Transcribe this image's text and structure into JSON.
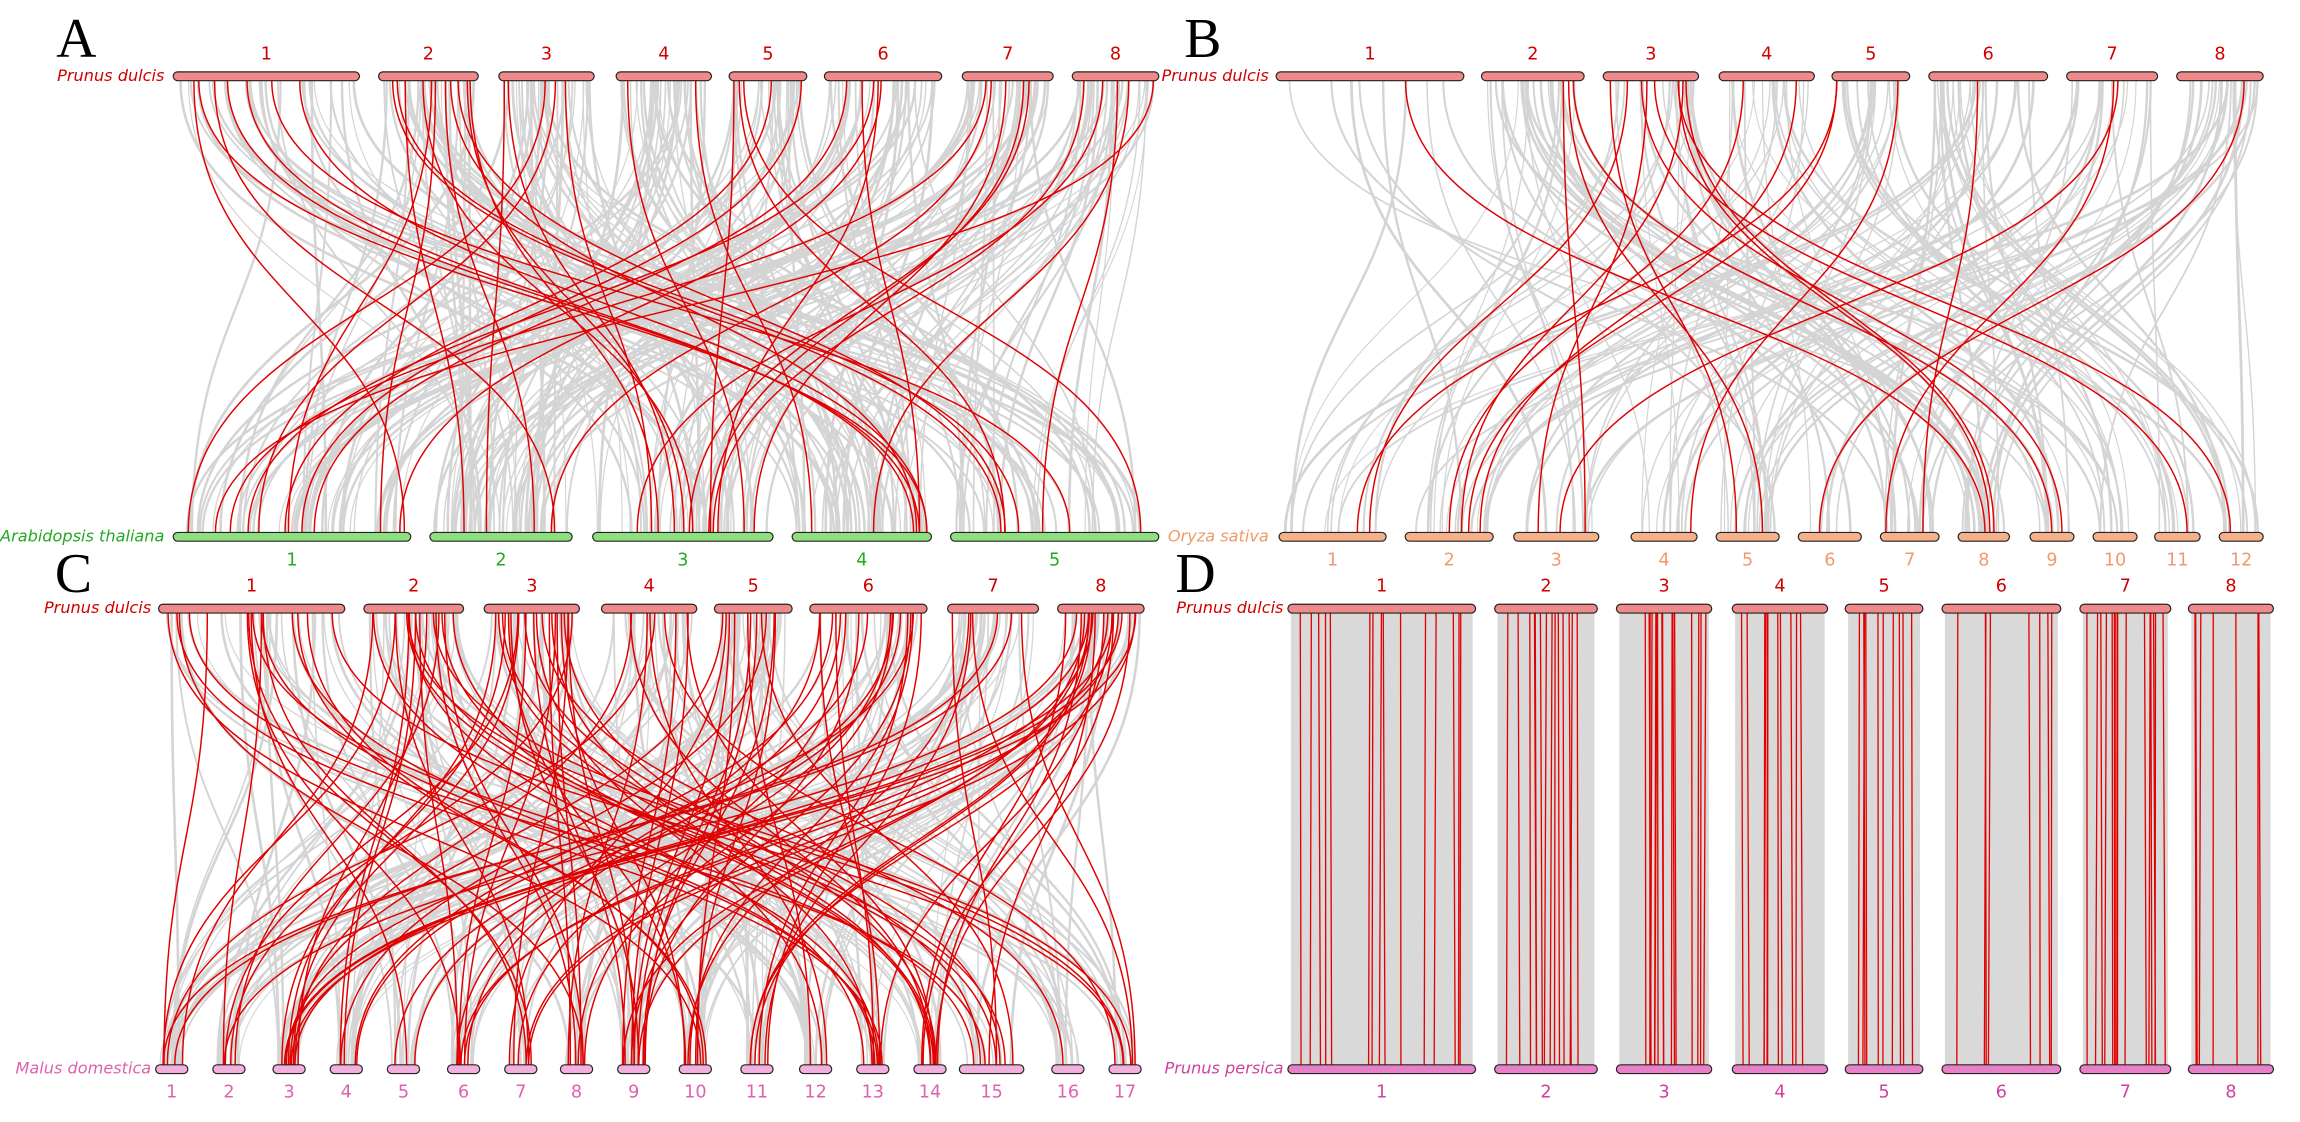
{
  "panels": [
    {
      "letter": "A",
      "top": {
        "species": "Prunus dulcis",
        "chromosomes": [
          "1",
          "2",
          "3",
          "4",
          "5",
          "6",
          "7",
          "8"
        ]
      },
      "bottom": {
        "species": "Arabidopsis thaliana",
        "chromosomes": [
          "1",
          "2",
          "3",
          "4",
          "5"
        ]
      }
    },
    {
      "letter": "B",
      "top": {
        "species": "Prunus dulcis",
        "chromosomes": [
          "1",
          "2",
          "3",
          "4",
          "5",
          "6",
          "7",
          "8"
        ]
      },
      "bottom": {
        "species": "Oryza sativa",
        "chromosomes": [
          "1",
          "2",
          "3",
          "4",
          "5",
          "6",
          "7",
          "8",
          "9",
          "10",
          "11",
          "12"
        ]
      }
    },
    {
      "letter": "C",
      "top": {
        "species": "Prunus dulcis",
        "chromosomes": [
          "1",
          "2",
          "3",
          "4",
          "5",
          "6",
          "7",
          "8"
        ]
      },
      "bottom": {
        "species": "Malus domestica",
        "chromosomes": [
          "1",
          "2",
          "3",
          "4",
          "5",
          "6",
          "7",
          "8",
          "9",
          "10",
          "11",
          "12",
          "13",
          "14",
          "15",
          "16",
          "17"
        ]
      }
    },
    {
      "letter": "D",
      "top": {
        "species": "Prunus dulcis",
        "chromosomes": [
          "1",
          "2",
          "3",
          "4",
          "5",
          "6",
          "7",
          "8"
        ]
      },
      "bottom": {
        "species": "Prunus persica",
        "chromosomes": [
          "1",
          "2",
          "3",
          "4",
          "5",
          "6",
          "7",
          "8"
        ]
      }
    }
  ]
}
